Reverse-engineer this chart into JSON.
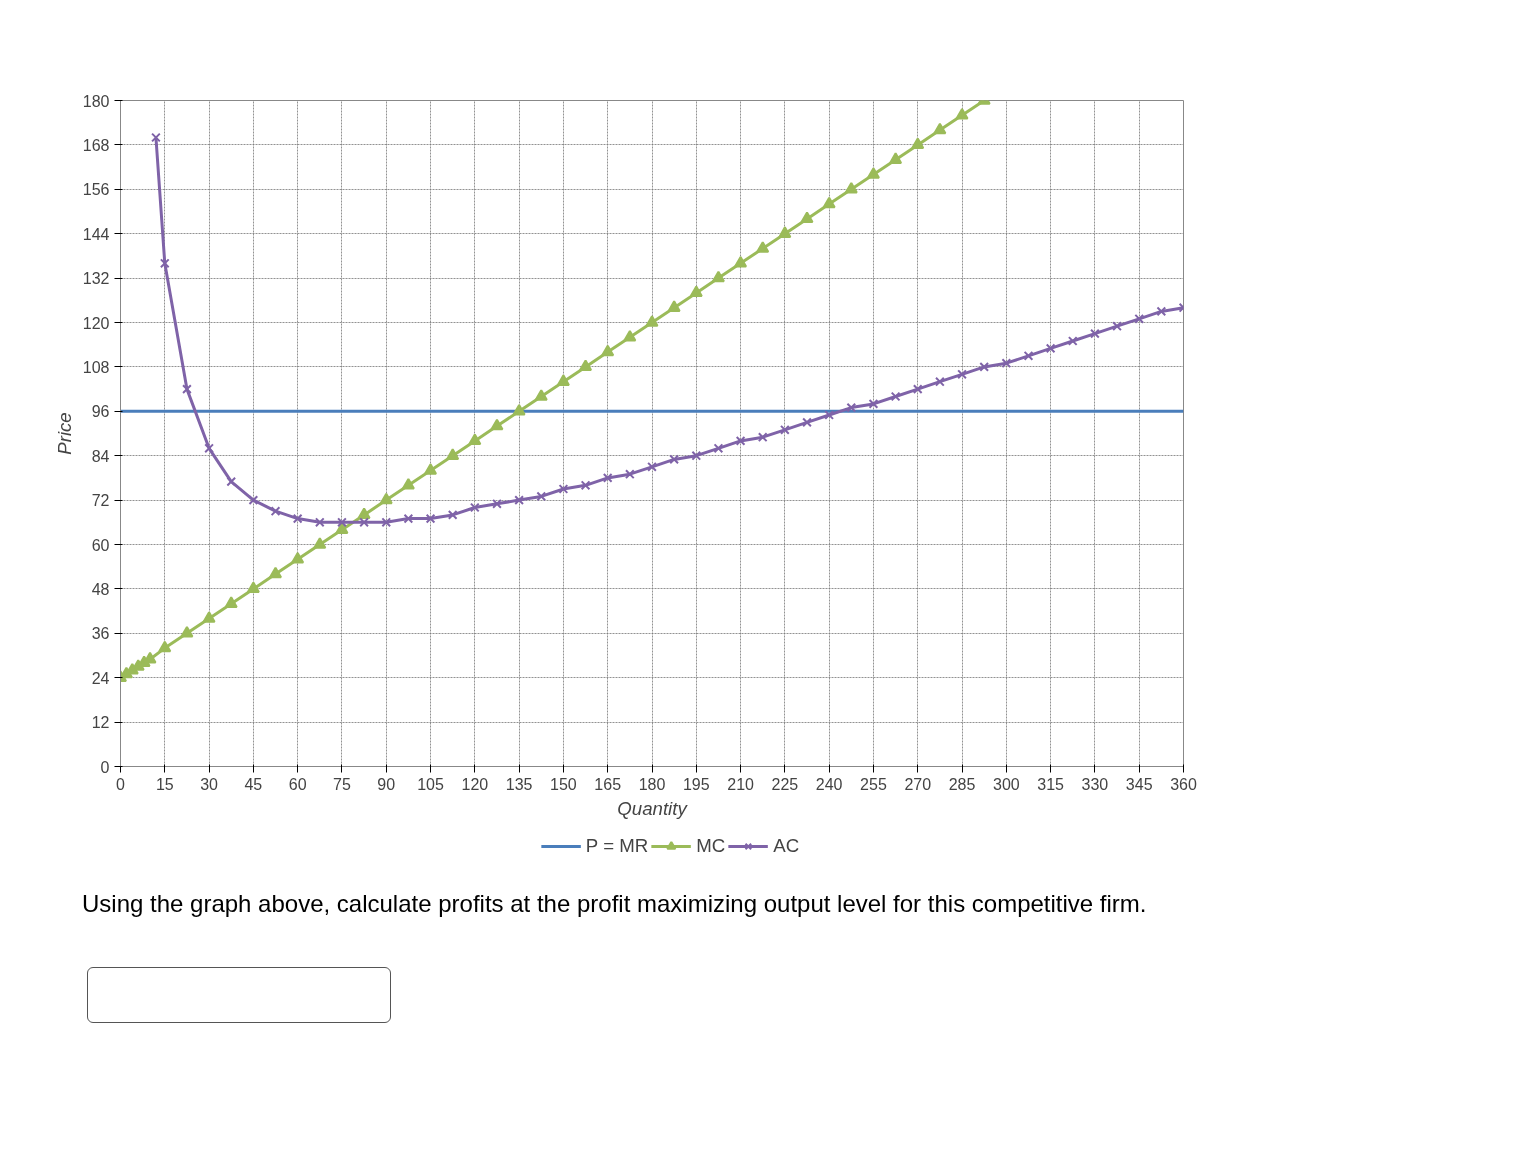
{
  "chart_data": {
    "type": "line",
    "xlabel": "Quantity",
    "ylabel": "Price",
    "xlim": [
      0,
      360
    ],
    "ylim": [
      0,
      180
    ],
    "xticks": [
      0,
      15,
      30,
      45,
      60,
      75,
      90,
      105,
      120,
      135,
      150,
      165,
      180,
      195,
      210,
      225,
      240,
      255,
      270,
      285,
      300,
      315,
      330,
      345,
      360
    ],
    "yticks": [
      0,
      12,
      24,
      36,
      48,
      60,
      72,
      84,
      96,
      108,
      120,
      132,
      144,
      156,
      168,
      180
    ],
    "grid": true,
    "legend": "bottom",
    "series": [
      {
        "name": "P = MR",
        "color": "#4a7ebb",
        "marker": "none",
        "x": [
          0,
          360
        ],
        "values": [
          96,
          96
        ]
      },
      {
        "name": "MC",
        "color": "#9bbb59",
        "marker": "triangle",
        "x": [
          0,
          2,
          4,
          6,
          8,
          10,
          15,
          22.5,
          30,
          37.5,
          45,
          52.5,
          60,
          67.5,
          75,
          82.5,
          90,
          97.5,
          105,
          112.5,
          120,
          127.5,
          135,
          142.5,
          150,
          157.5,
          165,
          172.5,
          180,
          187.5,
          195,
          202.5,
          210,
          217.5,
          225,
          232.5,
          240,
          247.5,
          255,
          262.5,
          270,
          277.5,
          285,
          292.5
        ],
        "values": [
          24,
          25,
          26,
          27,
          28,
          29,
          32,
          36,
          40,
          44,
          48,
          52,
          56,
          60,
          64,
          68,
          72,
          76,
          80,
          84,
          88,
          92,
          96,
          100,
          104,
          108,
          112,
          116,
          120,
          124,
          128,
          132,
          136,
          140,
          144,
          148,
          152,
          156,
          160,
          164,
          168,
          172,
          176,
          180
        ]
      },
      {
        "name": "AC",
        "color": "#7f63a8",
        "marker": "cross",
        "x": [
          12,
          15,
          22.5,
          30,
          37.5,
          45,
          52.5,
          60,
          67.5,
          75,
          82.5,
          90,
          97.5,
          105,
          112.5,
          120,
          127.5,
          135,
          142.5,
          150,
          157.5,
          165,
          172.5,
          180,
          187.5,
          195,
          202.5,
          210,
          217.5,
          225,
          232.5,
          240,
          247.5,
          255,
          262.5,
          270,
          277.5,
          285,
          292.5,
          300,
          307.5,
          315,
          322.5,
          330,
          337.5,
          345,
          352.5,
          360
        ],
        "values": [
          170,
          136,
          102,
          86,
          77,
          72,
          69,
          67,
          66,
          66,
          66,
          66,
          67,
          67,
          68,
          70,
          71,
          72,
          73,
          75,
          76,
          78,
          79,
          81,
          83,
          84,
          86,
          88,
          89,
          91,
          93,
          95,
          97,
          98,
          100,
          102,
          104,
          106,
          108,
          109,
          111,
          113,
          115,
          117,
          119,
          121,
          123,
          124
        ]
      }
    ],
    "annotations": [
      "Using the graph above, calculate profits at the profit maximizing output level for this competitive firm."
    ]
  }
}
